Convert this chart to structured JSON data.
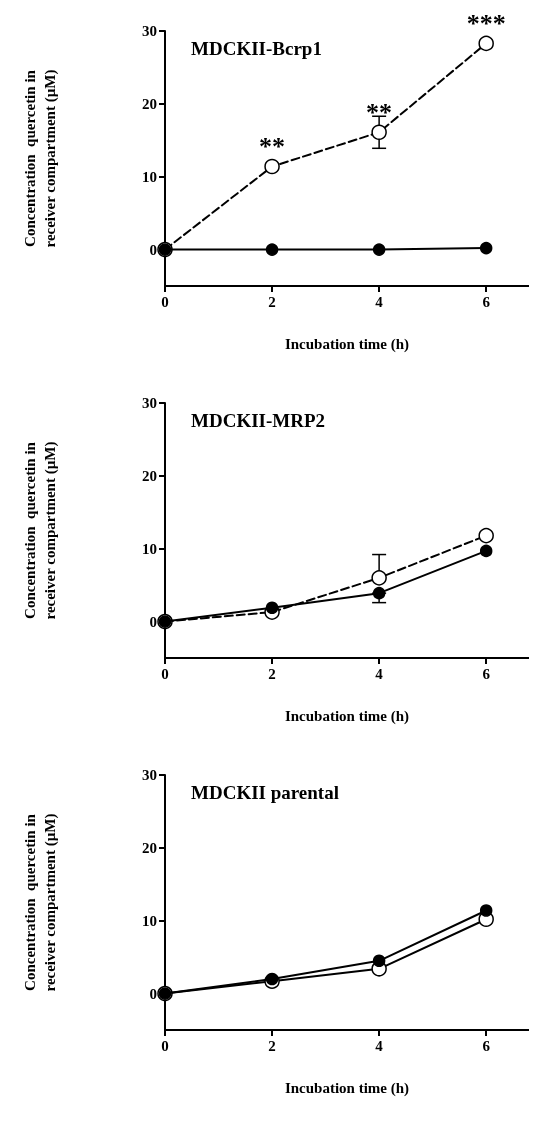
{
  "chart_data": [
    {
      "type": "line",
      "title": "MDCKII-Bcrp1",
      "xlabel": "Incubation time (h)",
      "ylabel": "Concentration  quercetin in\nreceiver compartment (µM)",
      "x": [
        0,
        2,
        4,
        6
      ],
      "xlim": [
        0,
        6.8
      ],
      "ylim": [
        -5,
        30
      ],
      "xticks": [
        0,
        2,
        4,
        6
      ],
      "yticks": [
        0,
        10,
        20,
        30
      ],
      "grid": false,
      "marker": "circle",
      "series": [
        {
          "color": "#ffffff",
          "line_style": "dashed",
          "values": [
            0,
            11.4,
            16.1,
            28.3
          ],
          "errors": [
            null,
            null,
            2.2,
            null
          ]
        },
        {
          "color": "#000000",
          "line_style": "solid",
          "values": [
            0,
            0,
            0,
            0.2
          ]
        }
      ],
      "annotations": [
        {
          "text": "**",
          "x": 2,
          "y": 11.4
        },
        {
          "text": "**",
          "x": 4,
          "y": 16.1
        },
        {
          "text": "***",
          "x": 6,
          "y": 28.3
        }
      ]
    },
    {
      "type": "line",
      "title": "MDCKII-MRP2",
      "xlabel": "Incubation time (h)",
      "ylabel": "Concentration  quercetin in\nreceiver compartment (µM)",
      "x": [
        0,
        2,
        4,
        6
      ],
      "xlim": [
        0,
        6.8
      ],
      "ylim": [
        -5,
        30
      ],
      "xticks": [
        0,
        2,
        4,
        6
      ],
      "yticks": [
        0,
        10,
        20,
        30
      ],
      "grid": false,
      "marker": "circle",
      "series": [
        {
          "color": "#ffffff",
          "line_style": "dashed",
          "values": [
            0,
            1.3,
            6.0,
            11.8
          ],
          "errors": [
            null,
            null,
            [
              6.0,
              9.2
            ],
            null
          ]
        },
        {
          "color": "#000000",
          "line_style": "solid",
          "values": [
            0,
            1.9,
            3.9,
            9.7
          ],
          "errors": [
            null,
            null,
            [
              2.6,
              3.9
            ],
            null
          ]
        }
      ]
    },
    {
      "type": "line",
      "title": "MDCKII parental",
      "xlabel": "Incubation time (h)",
      "ylabel": "Concentration  quercetin in\nreceiver compartment (µM)",
      "x": [
        0,
        2,
        4,
        6
      ],
      "xlim": [
        0,
        6.8
      ],
      "ylim": [
        -5,
        30
      ],
      "xticks": [
        0,
        2,
        4,
        6
      ],
      "yticks": [
        0,
        10,
        20,
        30
      ],
      "grid": false,
      "marker": "circle",
      "series": [
        {
          "color": "#ffffff",
          "line_style": "solid",
          "values": [
            0,
            1.7,
            3.4,
            10.2
          ]
        },
        {
          "color": "#000000",
          "line_style": "solid",
          "values": [
            0,
            2.0,
            4.5,
            11.4
          ]
        }
      ]
    }
  ]
}
